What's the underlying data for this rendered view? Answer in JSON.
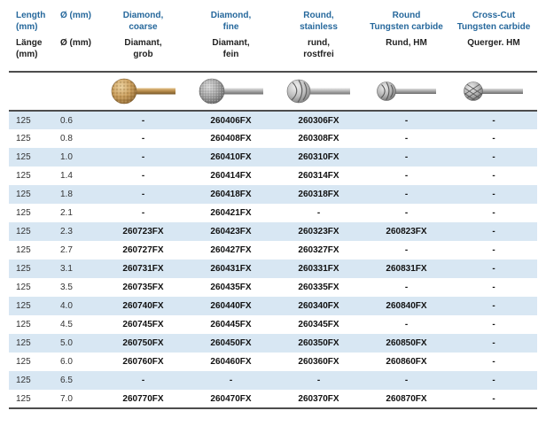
{
  "colors": {
    "header_blue": "#26689c",
    "zebra_row": "#d8e7f3",
    "rule": "#4d4d4d"
  },
  "table": {
    "columns": [
      {
        "en": "Length\n(mm)",
        "de": "Länge\n(mm)"
      },
      {
        "en": "Ø (mm)",
        "de": "Ø (mm)"
      },
      {
        "en": "Diamond,\ncoarse",
        "de": "Diamant,\ngrob"
      },
      {
        "en": "Diamond,\nfine",
        "de": "Diamant,\nfein"
      },
      {
        "en": "Round,\nstainless",
        "de": "rund,\nrostfrei"
      },
      {
        "en": "Round\nTungsten carbide",
        "de": "Rund, HM"
      },
      {
        "en": "Cross-Cut\nTungsten carbide",
        "de": "Querger. HM"
      }
    ],
    "images": [
      "diamond-coarse-burr",
      "diamond-fine-burr",
      "round-stainless-burr",
      "round-tungsten-carbide-burr",
      "cross-cut-tungsten-carbide-burr"
    ],
    "rows": [
      {
        "length": "125",
        "diameter": "0.6",
        "codes": [
          "-",
          "260406FX",
          "260306FX",
          "-",
          "-"
        ]
      },
      {
        "length": "125",
        "diameter": "0.8",
        "codes": [
          "-",
          "260408FX",
          "260308FX",
          "-",
          "-"
        ]
      },
      {
        "length": "125",
        "diameter": "1.0",
        "codes": [
          "-",
          "260410FX",
          "260310FX",
          "-",
          "-"
        ]
      },
      {
        "length": "125",
        "diameter": "1.4",
        "codes": [
          "-",
          "260414FX",
          "260314FX",
          "-",
          "-"
        ]
      },
      {
        "length": "125",
        "diameter": "1.8",
        "codes": [
          "-",
          "260418FX",
          "260318FX",
          "-",
          "-"
        ]
      },
      {
        "length": "125",
        "diameter": "2.1",
        "codes": [
          "-",
          "260421FX",
          "-",
          "-",
          "-"
        ]
      },
      {
        "length": "125",
        "diameter": "2.3",
        "codes": [
          "260723FX",
          "260423FX",
          "260323FX",
          "260823FX",
          "-"
        ]
      },
      {
        "length": "125",
        "diameter": "2.7",
        "codes": [
          "260727FX",
          "260427FX",
          "260327FX",
          "-",
          "-"
        ]
      },
      {
        "length": "125",
        "diameter": "3.1",
        "codes": [
          "260731FX",
          "260431FX",
          "260331FX",
          "260831FX",
          "-"
        ]
      },
      {
        "length": "125",
        "diameter": "3.5",
        "codes": [
          "260735FX",
          "260435FX",
          "260335FX",
          "-",
          "-"
        ]
      },
      {
        "length": "125",
        "diameter": "4.0",
        "codes": [
          "260740FX",
          "260440FX",
          "260340FX",
          "260840FX",
          "-"
        ]
      },
      {
        "length": "125",
        "diameter": "4.5",
        "codes": [
          "260745FX",
          "260445FX",
          "260345FX",
          "-",
          "-"
        ]
      },
      {
        "length": "125",
        "diameter": "5.0",
        "codes": [
          "260750FX",
          "260450FX",
          "260350FX",
          "260850FX",
          "-"
        ]
      },
      {
        "length": "125",
        "diameter": "6.0",
        "codes": [
          "260760FX",
          "260460FX",
          "260360FX",
          "260860FX",
          "-"
        ]
      },
      {
        "length": "125",
        "diameter": "6.5",
        "codes": [
          "-",
          "-",
          "-",
          "-",
          "-"
        ]
      },
      {
        "length": "125",
        "diameter": "7.0",
        "codes": [
          "260770FX",
          "260470FX",
          "260370FX",
          "260870FX",
          "-"
        ]
      }
    ]
  }
}
